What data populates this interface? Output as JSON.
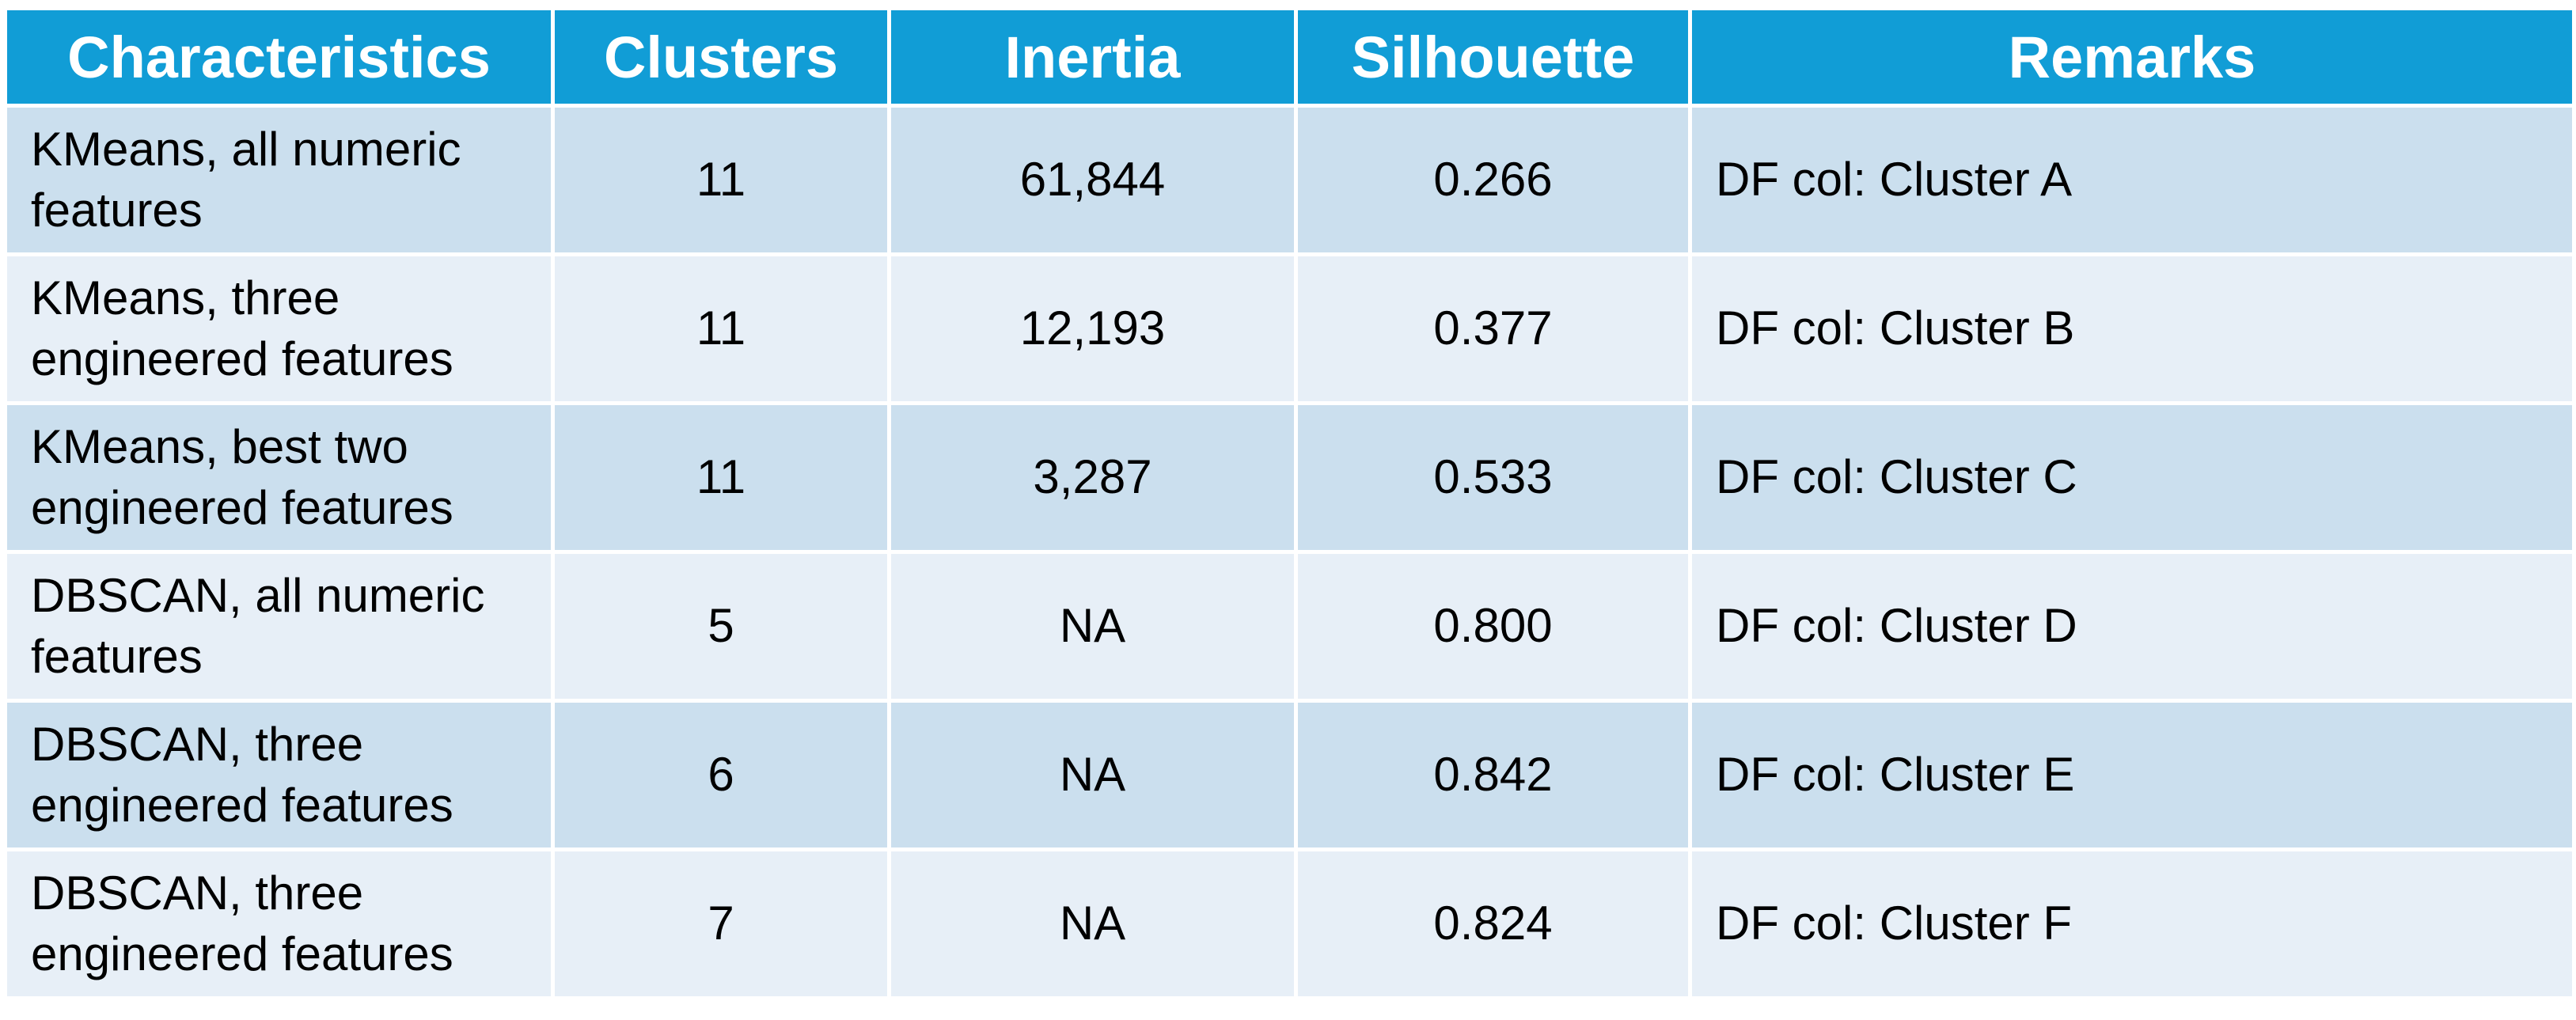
{
  "colors": {
    "header_bg": "#119dd6",
    "header_text": "#ffffff",
    "row_odd": "#cbdfee",
    "row_even": "#e7eff7"
  },
  "chart_data": {
    "type": "table",
    "columns": [
      "Characteristics",
      "Clusters",
      "Inertia",
      "Silhouette",
      "Remarks"
    ],
    "rows": [
      [
        "KMeans, all numeric features",
        "11",
        "61,844",
        "0.266",
        "DF col: Cluster A"
      ],
      [
        "KMeans, three engineered features",
        "11",
        "12,193",
        "0.377",
        "DF col: Cluster B"
      ],
      [
        "KMeans, best two engineered features",
        "11",
        "3,287",
        "0.533",
        "DF col: Cluster C"
      ],
      [
        "DBSCAN, all numeric features",
        "5",
        "NA",
        "0.800",
        "DF col: Cluster D"
      ],
      [
        "DBSCAN, three engineered features",
        "6",
        "NA",
        "0.842",
        "DF col: Cluster E"
      ],
      [
        "DBSCAN, three engineered features",
        "7",
        "NA",
        "0.824",
        "DF col: Cluster F"
      ]
    ]
  }
}
